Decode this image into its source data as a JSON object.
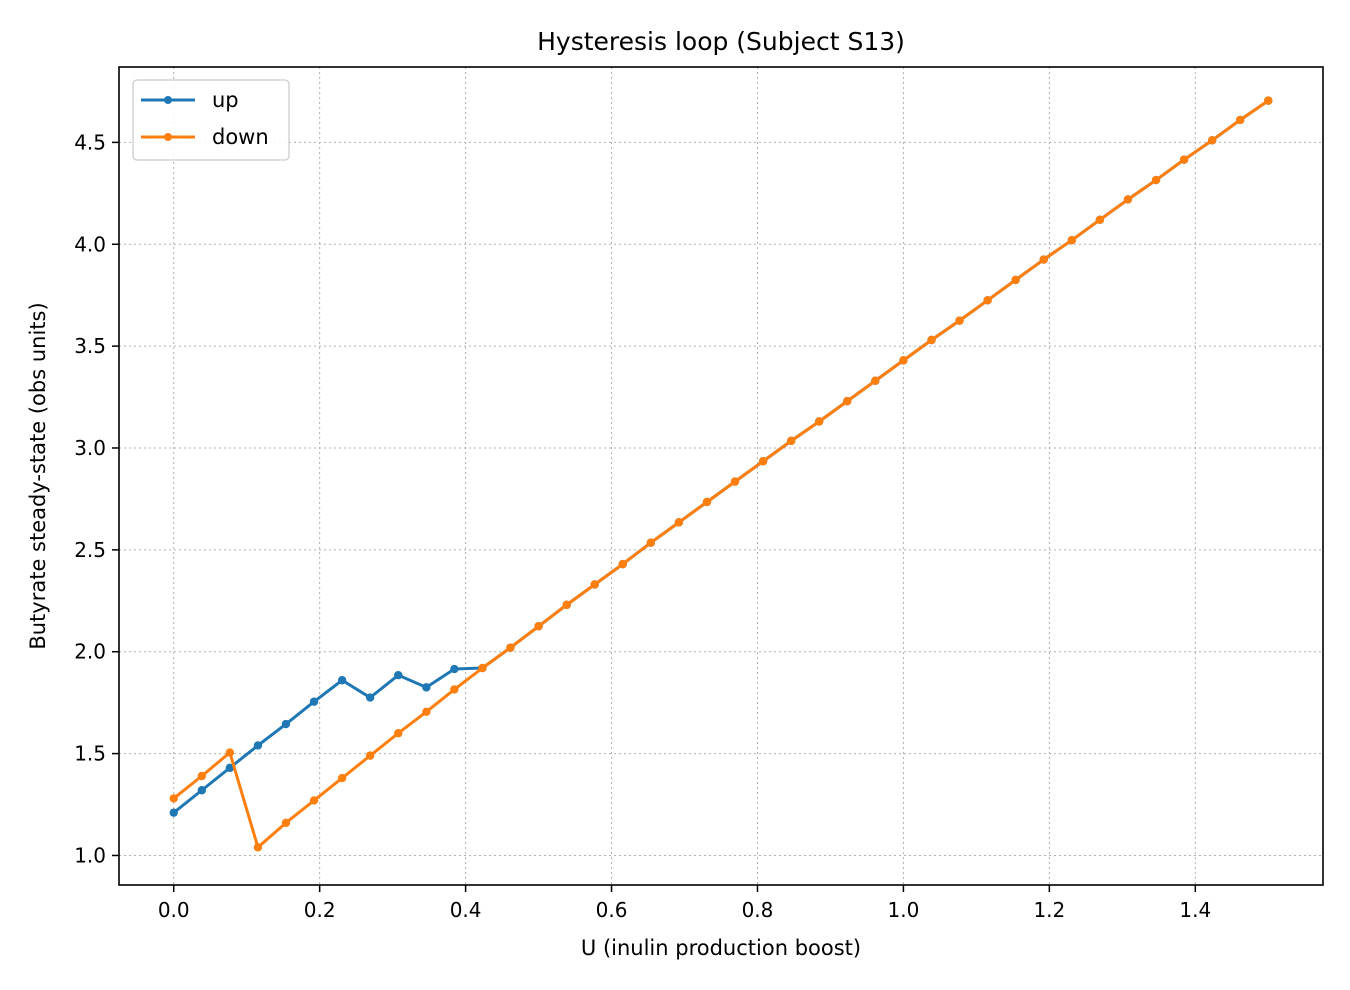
{
  "chart_data": {
    "type": "line",
    "title": "Hysteresis loop (Subject S13)",
    "xlabel": "U (inulin production boost)",
    "ylabel": "Butyrate steady-state (obs units)",
    "xlim": [
      -0.075,
      1.575
    ],
    "ylim": [
      0.855,
      4.87
    ],
    "xticks": [
      0.0,
      0.2,
      0.4,
      0.6,
      0.8,
      1.0,
      1.2,
      1.4
    ],
    "xtick_labels": [
      "0.0",
      "0.2",
      "0.4",
      "0.6",
      "0.8",
      "1.0",
      "1.2",
      "1.4"
    ],
    "yticks": [
      1.0,
      1.5,
      2.0,
      2.5,
      3.0,
      3.5,
      4.0,
      4.5
    ],
    "ytick_labels": [
      "1.0",
      "1.5",
      "2.0",
      "2.5",
      "3.0",
      "3.5",
      "4.0",
      "4.5"
    ],
    "grid": true,
    "legend_position": "upper-left",
    "x": [
      0.0,
      0.0385,
      0.0769,
      0.1154,
      0.1538,
      0.1923,
      0.2308,
      0.2692,
      0.3077,
      0.3462,
      0.3846,
      0.4231,
      0.4615,
      0.5,
      0.5385,
      0.5769,
      0.6154,
      0.6538,
      0.6923,
      0.7308,
      0.7692,
      0.8077,
      0.8462,
      0.8846,
      0.9231,
      0.9615,
      1.0,
      1.0385,
      1.0769,
      1.1154,
      1.1538,
      1.1923,
      1.2308,
      1.2692,
      1.3077,
      1.3462,
      1.3846,
      1.4231,
      1.4615,
      1.5
    ],
    "series": [
      {
        "name": "up",
        "color": "#1f77b4",
        "values": [
          1.21,
          1.32,
          1.43,
          1.54,
          1.645,
          1.755,
          1.86,
          1.775,
          1.885,
          1.825,
          1.915,
          1.92,
          2.02,
          2.125,
          2.23,
          2.33,
          2.43,
          2.535,
          2.635,
          2.735,
          2.835,
          2.935,
          3.035,
          3.13,
          3.23,
          3.33,
          3.43,
          3.53,
          3.625,
          3.725,
          3.825,
          3.925,
          4.02,
          4.12,
          4.22,
          4.315,
          4.415,
          4.51,
          4.61,
          4.705
        ]
      },
      {
        "name": "down",
        "color": "#ff7f0e",
        "values": [
          1.28,
          1.39,
          1.505,
          1.04,
          1.16,
          1.27,
          1.38,
          1.49,
          1.6,
          1.705,
          1.815,
          1.92,
          2.02,
          2.125,
          2.23,
          2.33,
          2.43,
          2.535,
          2.635,
          2.735,
          2.835,
          2.935,
          3.035,
          3.13,
          3.23,
          3.33,
          3.43,
          3.53,
          3.625,
          3.725,
          3.825,
          3.925,
          4.02,
          4.12,
          4.22,
          4.315,
          4.415,
          4.51,
          4.61,
          4.705
        ]
      }
    ]
  }
}
